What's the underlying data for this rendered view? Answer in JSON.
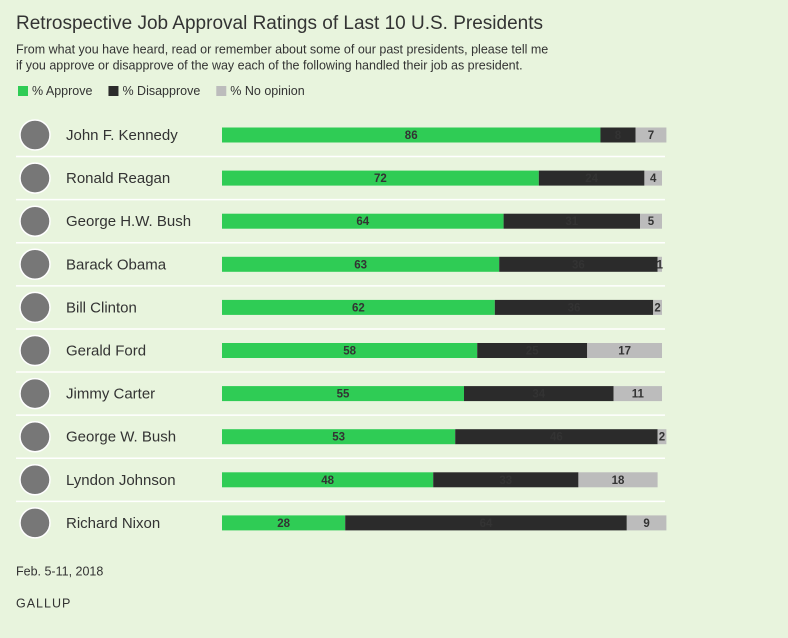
{
  "chart_data": {
    "type": "bar",
    "orientation": "horizontal",
    "stacked": true,
    "title": "Retrospective Job Approval Ratings of Last 10 U.S. Presidents",
    "subtitle": [
      "From what you have heard, read or remember about some of our past presidents, please tell me",
      "if you approve or disapprove of the way each of the following handled their job as president."
    ],
    "categories": [
      "John F. Kennedy",
      "Ronald Reagan",
      "George H.W. Bush",
      "Barack Obama",
      "Bill Clinton",
      "Gerald Ford",
      "Jimmy Carter",
      "George W. Bush",
      "Lyndon Johnson",
      "Richard Nixon"
    ],
    "series": [
      {
        "name": "% Approve",
        "color": "#2fcc55",
        "values": [
          86,
          72,
          64,
          63,
          62,
          58,
          55,
          53,
          48,
          28
        ]
      },
      {
        "name": "% Disapprove",
        "color": "#2b2b2b",
        "values": [
          8,
          24,
          31,
          36,
          36,
          25,
          34,
          46,
          33,
          64
        ]
      },
      {
        "name": "% No opinion",
        "color": "#bcbcbc",
        "values": [
          7,
          4,
          5,
          1,
          2,
          17,
          11,
          2,
          18,
          9
        ]
      }
    ],
    "xlim": [
      0,
      100
    ],
    "note": "Feb. 5-11, 2018",
    "source": "GALLUP"
  }
}
